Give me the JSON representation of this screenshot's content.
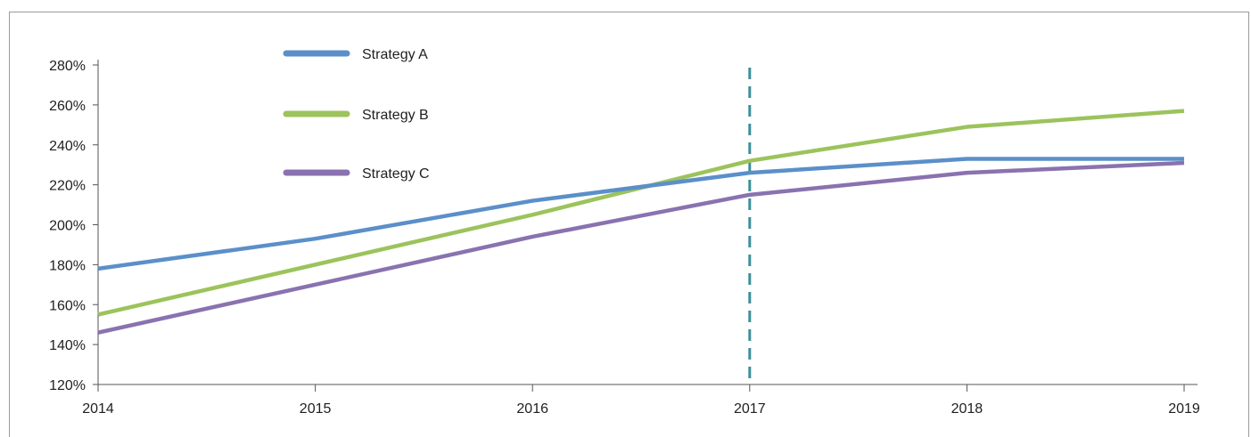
{
  "chart_data": {
    "type": "line",
    "x": [
      2014,
      2015,
      2016,
      2017,
      2018,
      2019
    ],
    "xticks": [
      "2014",
      "2015",
      "2016",
      "2017",
      "2018",
      "2019"
    ],
    "yticks": [
      "120%",
      "140%",
      "160%",
      "180%",
      "200%",
      "220%",
      "240%",
      "260%",
      "280%"
    ],
    "ylim": [
      120,
      280
    ],
    "yunit": "%",
    "grid": false,
    "legend_position": "top-left",
    "series": [
      {
        "name": "Strategy A",
        "color": "#5b8fc9",
        "values": [
          178,
          193,
          212,
          226,
          233,
          233
        ]
      },
      {
        "name": "Strategy B",
        "color": "#9cc35c",
        "values": [
          155,
          180,
          205,
          232,
          249,
          257
        ]
      },
      {
        "name": "Strategy C",
        "color": "#8a72b0",
        "values": [
          146,
          170,
          194,
          215,
          226,
          231
        ]
      }
    ],
    "reference_line": {
      "x": 2017,
      "color": "#3d8f99",
      "style": "dashed"
    }
  }
}
